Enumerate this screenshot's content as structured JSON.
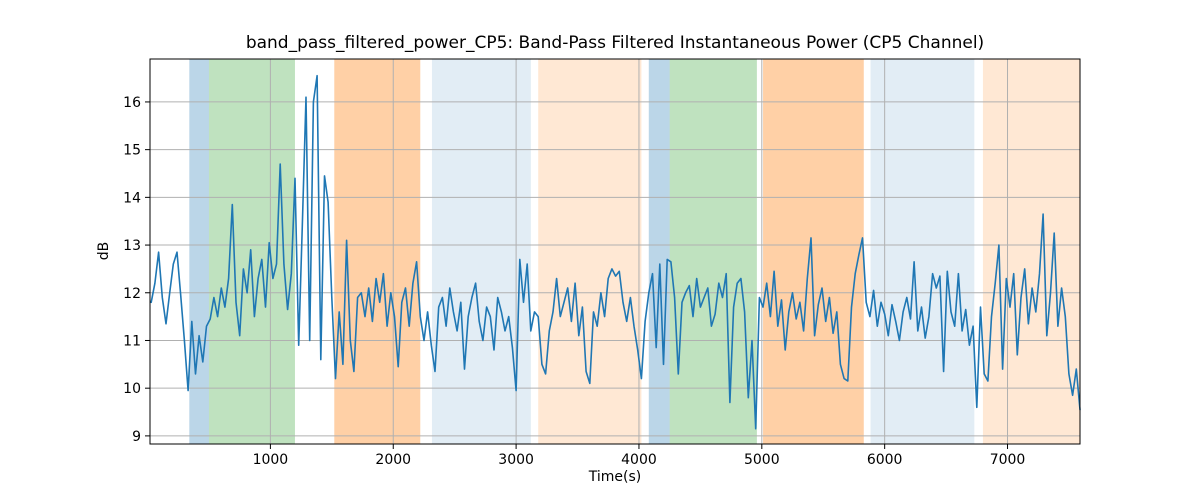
{
  "title": "band_pass_filtered_power_CP5: Band-Pass Filtered Instantaneous Power (CP5 Channel)",
  "chart_data": {
    "type": "line",
    "title": "band_pass_filtered_power_CP5: Band-Pass Filtered Instantaneous Power (CP5 Channel)",
    "xlabel": "Time(s)",
    "ylabel": "dB",
    "xlim": [
      20,
      7590
    ],
    "ylim": [
      8.83,
      16.9
    ],
    "x_ticks": [
      1000,
      2000,
      3000,
      4000,
      5000,
      6000,
      7000
    ],
    "y_ticks": [
      9,
      10,
      11,
      12,
      13,
      14,
      15,
      16
    ],
    "grid": true,
    "grid_color": "#b0b0b0",
    "frame_color": "#000000",
    "line_color": "#1f77b4",
    "line_width": 1.6,
    "legend": "none",
    "bands": [
      {
        "start": 340,
        "end": 500,
        "color": "rgba(31,119,180,0.30)"
      },
      {
        "start": 500,
        "end": 1200,
        "color": "rgba(44,160,44,0.30)"
      },
      {
        "start": 1520,
        "end": 2220,
        "color": "rgba(255,127,14,0.37)"
      },
      {
        "start": 2315,
        "end": 3120,
        "color": "rgba(31,119,180,0.13)"
      },
      {
        "start": 3180,
        "end": 4020,
        "color": "rgba(255,127,14,0.18)"
      },
      {
        "start": 4080,
        "end": 4250,
        "color": "rgba(31,119,180,0.30)"
      },
      {
        "start": 4250,
        "end": 4960,
        "color": "rgba(44,160,44,0.30)"
      },
      {
        "start": 5010,
        "end": 5830,
        "color": "rgba(255,127,14,0.37)"
      },
      {
        "start": 5885,
        "end": 6730,
        "color": "rgba(31,119,180,0.13)"
      },
      {
        "start": 6800,
        "end": 7590,
        "color": "rgba(255,127,14,0.18)"
      }
    ],
    "series": [
      {
        "name": "band_pass_filtered_power_CP5",
        "t_start": 30,
        "t_step": 30,
        "values": [
          11.8,
          12.2,
          12.85,
          11.9,
          11.35,
          12.0,
          12.6,
          12.85,
          11.95,
          11.0,
          9.95,
          11.4,
          10.3,
          11.1,
          10.55,
          11.3,
          11.45,
          11.9,
          11.5,
          12.1,
          11.7,
          12.3,
          13.85,
          11.8,
          11.1,
          12.5,
          12.0,
          12.9,
          11.5,
          12.3,
          12.7,
          11.7,
          13.05,
          12.3,
          12.6,
          14.7,
          12.6,
          11.65,
          12.4,
          14.4,
          10.9,
          13.4,
          16.1,
          11.0,
          16.0,
          16.55,
          10.6,
          14.45,
          13.9,
          11.9,
          10.2,
          11.6,
          10.5,
          13.1,
          11.0,
          10.35,
          11.9,
          12.0,
          11.5,
          12.1,
          11.4,
          12.3,
          11.8,
          12.4,
          11.3,
          12.0,
          11.5,
          10.45,
          11.8,
          12.1,
          11.3,
          12.2,
          12.65,
          11.5,
          11.0,
          11.6,
          10.9,
          10.35,
          11.7,
          11.9,
          11.3,
          12.1,
          11.6,
          11.2,
          11.8,
          10.4,
          11.5,
          11.9,
          12.2,
          11.4,
          11.0,
          11.7,
          11.5,
          10.8,
          11.9,
          11.6,
          11.2,
          11.5,
          10.85,
          9.95,
          12.7,
          11.8,
          12.6,
          11.2,
          11.6,
          11.5,
          10.5,
          10.3,
          11.2,
          11.6,
          12.3,
          11.5,
          11.8,
          12.1,
          11.4,
          12.2,
          11.1,
          11.7,
          10.35,
          10.1,
          11.6,
          11.3,
          12.0,
          11.5,
          12.3,
          12.5,
          12.35,
          12.45,
          11.8,
          11.4,
          11.9,
          11.3,
          10.8,
          10.2,
          11.4,
          12.0,
          12.4,
          10.85,
          12.6,
          10.5,
          12.7,
          12.65,
          11.9,
          10.3,
          11.8,
          12.0,
          12.15,
          11.5,
          12.3,
          11.7,
          11.9,
          12.1,
          11.3,
          11.55,
          12.2,
          11.9,
          12.4,
          9.7,
          11.7,
          12.2,
          12.3,
          11.6,
          9.8,
          11.0,
          9.15,
          11.9,
          11.7,
          12.2,
          11.5,
          12.45,
          11.3,
          11.85,
          10.8,
          11.6,
          12.0,
          11.45,
          11.8,
          11.2,
          12.3,
          13.15,
          11.1,
          11.75,
          12.1,
          11.4,
          11.9,
          11.15,
          11.6,
          10.5,
          10.2,
          10.15,
          11.7,
          12.4,
          12.8,
          13.15,
          11.8,
          11.5,
          12.05,
          11.3,
          11.8,
          11.55,
          11.1,
          11.75,
          11.4,
          11.0,
          11.6,
          11.9,
          11.45,
          12.65,
          11.2,
          11.7,
          11.05,
          11.5,
          12.4,
          12.1,
          12.35,
          10.35,
          12.45,
          11.6,
          11.3,
          12.4,
          11.2,
          11.65,
          10.9,
          11.3,
          9.6,
          11.7,
          10.3,
          10.15,
          11.5,
          12.2,
          13.0,
          10.4,
          12.3,
          11.7,
          12.4,
          10.7,
          11.9,
          12.5,
          11.35,
          12.1,
          11.6,
          12.4,
          13.65,
          11.1,
          12.0,
          13.25,
          11.3,
          12.1,
          11.5,
          10.3,
          9.85,
          10.4,
          9.55
        ]
      }
    ]
  }
}
